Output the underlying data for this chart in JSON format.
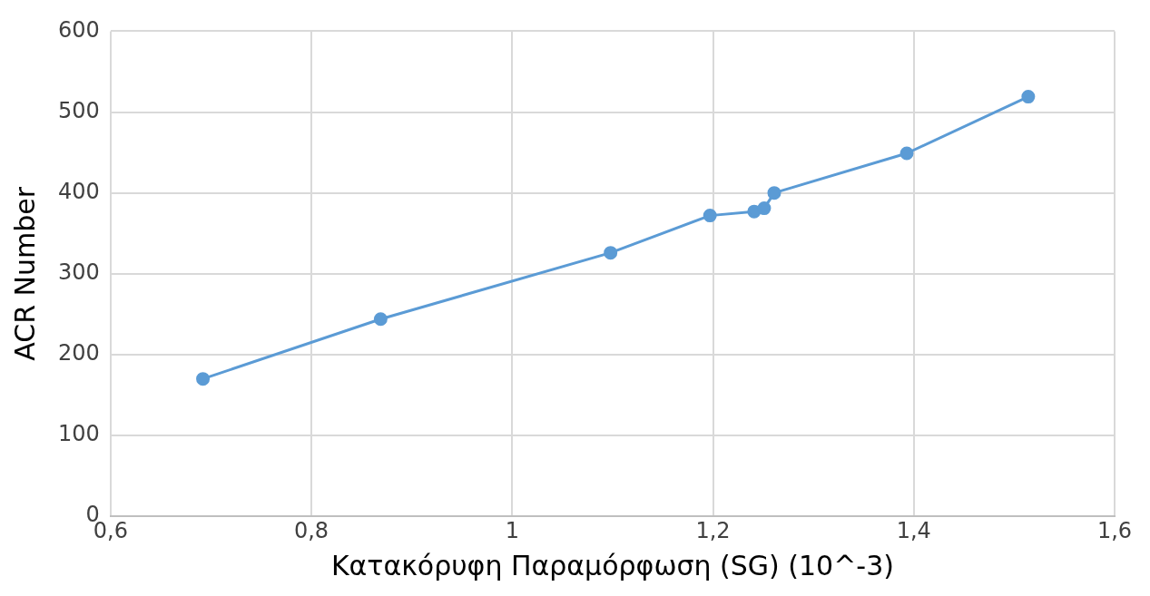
{
  "chart_data": {
    "type": "line",
    "xlabel": "Κατακόρυφη Παραμόρφωση (SG) (10^-3)",
    "ylabel": "ACR Number",
    "x": [
      0.692,
      0.869,
      1.098,
      1.197,
      1.241,
      1.251,
      1.261,
      1.393,
      1.514
    ],
    "values": [
      170,
      244,
      326,
      372,
      377,
      381,
      400,
      449,
      519
    ],
    "color": "#5b9bd5",
    "marker": "circle",
    "line_style": "solid",
    "xlim": [
      0.6,
      1.6
    ],
    "xticks": [
      {
        "value": 0.6,
        "label": "0,6"
      },
      {
        "value": 0.8,
        "label": "0,8"
      },
      1,
      {
        "value": 1.2,
        "label": "1,2"
      },
      {
        "value": 1.4,
        "label": "1,4"
      },
      {
        "value": 1.6,
        "label": "1,6"
      }
    ],
    "ylim": [
      0,
      600
    ],
    "yticks": [
      0,
      100,
      200,
      300,
      400,
      500,
      600
    ],
    "grid": true
  }
}
